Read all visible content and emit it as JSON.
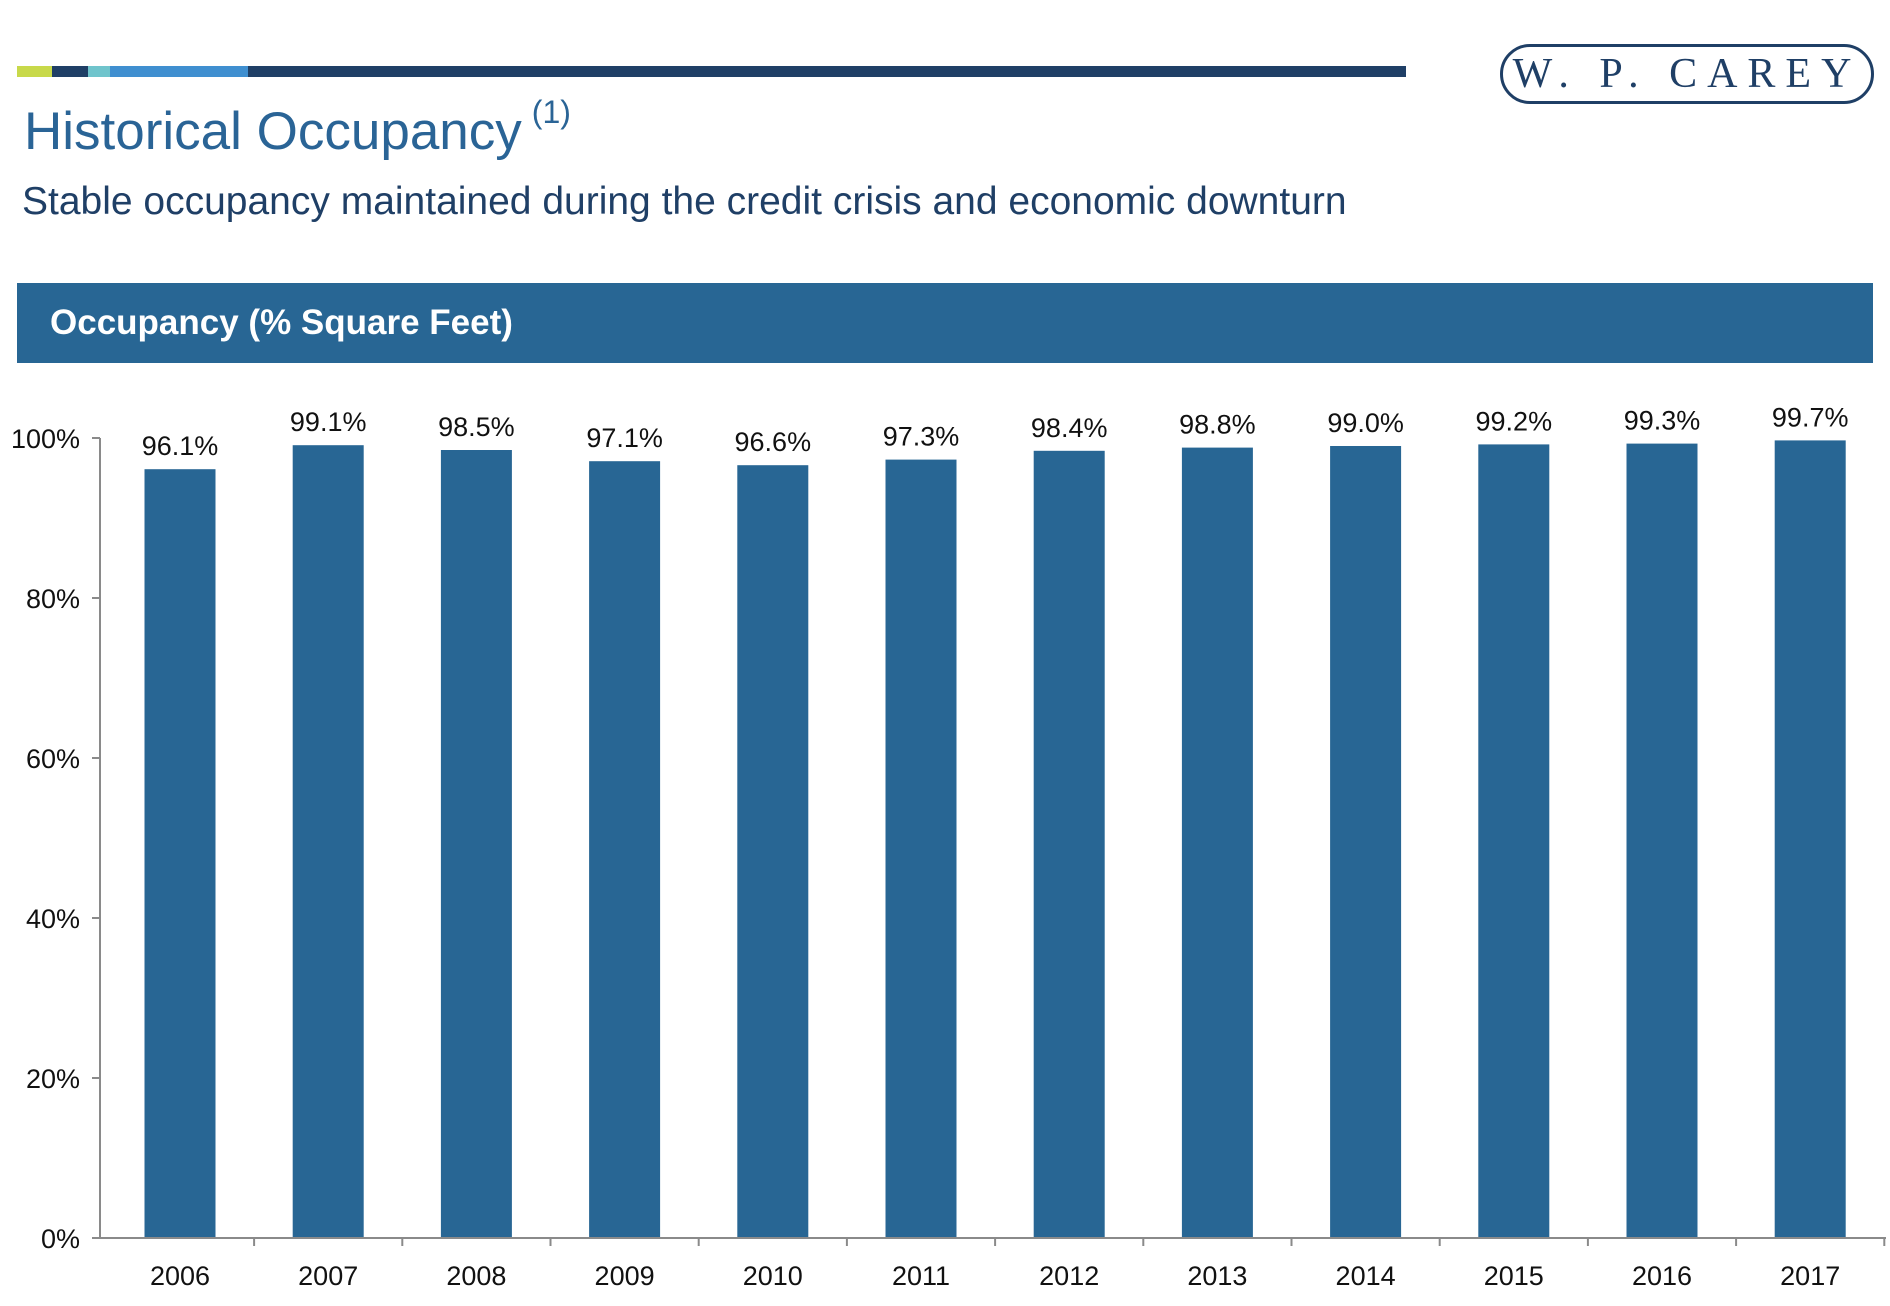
{
  "header": {
    "title": "Historical Occupancy",
    "title_note": "(1)",
    "subtitle": "Stable occupancy maintained during the credit crisis and economic downturn",
    "logo_text": "W. P. CAREY"
  },
  "colors": {
    "bar": "#286694",
    "title": "#2a6496",
    "dark_navy": "#1f3f66",
    "accent_lime": "#c8d94a",
    "accent_teal": "#6fc4cc",
    "accent_blue": "#3f8fd0"
  },
  "chart_data": {
    "type": "bar",
    "title": "Occupancy (% Square Feet)",
    "categories": [
      "2006",
      "2007",
      "2008",
      "2009",
      "2010",
      "2011",
      "2012",
      "2013",
      "2014",
      "2015",
      "2016",
      "2017"
    ],
    "values": [
      96.1,
      99.1,
      98.5,
      97.1,
      96.6,
      97.3,
      98.4,
      98.8,
      99.0,
      99.2,
      99.3,
      99.7
    ],
    "data_labels": [
      "96.1%",
      "99.1%",
      "98.5%",
      "97.1%",
      "96.6%",
      "97.3%",
      "98.4%",
      "98.8%",
      "99.0%",
      "99.2%",
      "99.3%",
      "99.7%"
    ],
    "ylim": [
      0,
      100
    ],
    "yticks": [
      0,
      20,
      40,
      60,
      80,
      100
    ],
    "ytick_labels": [
      "0%",
      "20%",
      "40%",
      "60%",
      "80%",
      "100%"
    ],
    "grid": false,
    "legend": "none",
    "xlabel": "",
    "ylabel": ""
  }
}
